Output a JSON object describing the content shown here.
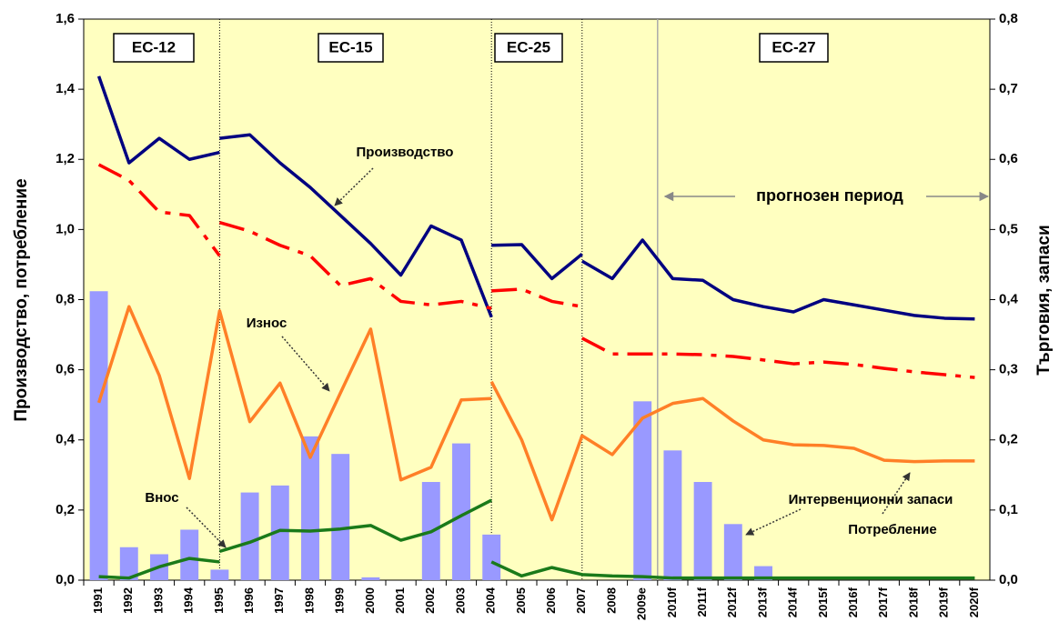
{
  "chart_data": {
    "type": "combo",
    "ylabel": "Производство, потребление",
    "y2label": "Търговия, запаси",
    "categories": [
      "1991",
      "1992",
      "1993",
      "1994",
      "1995",
      "1996",
      "1997",
      "1998",
      "1999",
      "2000",
      "2001",
      "2002",
      "2003",
      "2004",
      "2005",
      "2006",
      "2007",
      "2008",
      "2009e",
      "2010f",
      "2011f",
      "2012f",
      "2013f",
      "2014f",
      "2015f",
      "2016f",
      "2017f",
      "2018f",
      "2019f",
      "2020f"
    ],
    "ylim": [
      0,
      1.6
    ],
    "yticks": [
      {
        "value": 0,
        "label": "0,0"
      },
      {
        "value": 0.2,
        "label": "0,2"
      },
      {
        "value": 0.4,
        "label": "0,4"
      },
      {
        "value": 0.6,
        "label": "0,6"
      },
      {
        "value": 0.8,
        "label": "0,8"
      },
      {
        "value": 1.0,
        "label": "1,0"
      },
      {
        "value": 1.2,
        "label": "1,2"
      },
      {
        "value": 1.4,
        "label": "1,4"
      },
      {
        "value": 1.6,
        "label": "1,6"
      }
    ],
    "y2lim": [
      0,
      0.8
    ],
    "y2ticks": [
      {
        "value": 0,
        "label": "0,0"
      },
      {
        "value": 0.1,
        "label": "0,1"
      },
      {
        "value": 0.2,
        "label": "0,2"
      },
      {
        "value": 0.3,
        "label": "0,3"
      },
      {
        "value": 0.4,
        "label": "0,4"
      },
      {
        "value": 0.5,
        "label": "0,5"
      },
      {
        "value": 0.6,
        "label": "0,6"
      },
      {
        "value": 0.7,
        "label": "0,7"
      },
      {
        "value": 0.8,
        "label": "0,8"
      }
    ],
    "bars": {
      "name": "Интервенционни запаси",
      "color": "#9999ff",
      "axis": "y2",
      "values": [
        0.412,
        0.047,
        0.037,
        0.072,
        0.015,
        0.125,
        0.135,
        0.205,
        0.18,
        0.004,
        null,
        0.14,
        0.195,
        0.065,
        null,
        null,
        null,
        null,
        0.255,
        0.185,
        0.14,
        0.08,
        0.02,
        null,
        null,
        null,
        null,
        null,
        null,
        null
      ]
    },
    "series": [
      {
        "name": "Производство",
        "color": "#000080",
        "axis": "y",
        "segments": [
          {
            "start": 0,
            "values": [
              1.437,
              1.19,
              1.26,
              1.2,
              1.22
            ]
          },
          {
            "start": 4,
            "values": [
              1.26,
              1.27,
              1.19,
              1.12,
              1.04,
              0.96,
              0.87,
              1.01,
              0.97,
              0.75
            ]
          },
          {
            "start": 13,
            "values": [
              0.955,
              0.957,
              0.86,
              0.93
            ]
          },
          {
            "start": 16,
            "values": [
              0.91,
              0.86,
              0.97,
              0.86,
              0.855,
              0.8,
              0.78,
              0.765,
              0.8,
              0.785,
              0.77,
              0.755,
              0.747,
              0.745
            ]
          }
        ]
      },
      {
        "name": "Потребление",
        "color": "#ff0000",
        "axis": "y",
        "dash": true,
        "segments": [
          {
            "start": 0,
            "values": [
              1.185,
              1.14,
              1.05,
              1.04,
              0.925
            ]
          },
          {
            "start": 4,
            "values": [
              1.02,
              0.995,
              0.955,
              0.925,
              0.84,
              0.86,
              0.795,
              0.785,
              0.795,
              0.775
            ]
          },
          {
            "start": 13,
            "values": [
              0.825,
              0.83,
              0.795,
              0.78
            ]
          },
          {
            "start": 16,
            "values": [
              0.69,
              0.645,
              0.645,
              0.645,
              0.643,
              0.638,
              0.628,
              0.617,
              0.622,
              0.615,
              0.604,
              0.594,
              0.586,
              0.578
            ]
          }
        ]
      },
      {
        "name": "Износ",
        "color": "#ff7f27",
        "axis": "y2",
        "segments": [
          {
            "start": 0,
            "values": [
              0.253,
              0.39,
              0.292,
              0.145,
              0.384,
              0.226,
              0.281,
              0.175,
              0.267,
              0.358,
              0.143,
              0.161,
              0.257,
              0.259
            ]
          },
          {
            "start": 13,
            "values": [
              0.283,
              0.2,
              0.086,
              0.206,
              0.179,
              0.231,
              0.252,
              0.259,
              0.227,
              0.2,
              0.193,
              0.192,
              0.188,
              0.171,
              0.169,
              0.17,
              0.17
            ]
          }
        ]
      },
      {
        "name": "Внос",
        "color": "#1a7a1a",
        "axis": "y2",
        "segments": [
          {
            "start": 0,
            "values": [
              0.005,
              0.003,
              0.019,
              0.031,
              0.026
            ]
          },
          {
            "start": 4,
            "values": [
              0.041,
              0.054,
              0.071,
              0.07,
              0.073,
              0.078,
              0.057,
              0.069,
              0.092,
              0.114
            ]
          },
          {
            "start": 13,
            "values": [
              0.026,
              0.006,
              0.018,
              0.008,
              0.006,
              0.005,
              0.003,
              0.003,
              0.003,
              0.003,
              0.003,
              0.003,
              0.003,
              0.003,
              0.003,
              0.003,
              0.003
            ]
          }
        ]
      }
    ],
    "eras": [
      "ЕС-12",
      "ЕС-15",
      "ЕС-25",
      "ЕС-27"
    ],
    "forecast_label": "прогнозен период"
  }
}
